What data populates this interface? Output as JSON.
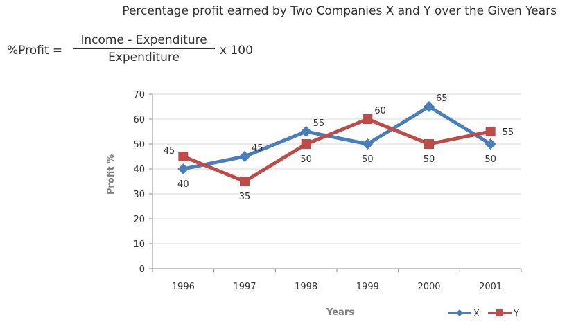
{
  "header": {
    "title": "Percentage profit earned by Two Companies X and Y over the Given Years"
  },
  "formula": {
    "lhs": "%Profit =",
    "numerator": "Income - Expenditure",
    "denominator": "Expenditure",
    "multiplier": "x 100"
  },
  "chart_data": {
    "type": "line",
    "categories": [
      "1996",
      "1997",
      "1998",
      "1999",
      "2000",
      "2001"
    ],
    "series": [
      {
        "name": "X",
        "values": [
          40,
          45,
          55,
          50,
          65,
          50
        ],
        "color": "#4a7ebb",
        "marker": "diamond"
      },
      {
        "name": "Y",
        "values": [
          45,
          35,
          50,
          60,
          50,
          55
        ],
        "color": "#be4b48",
        "marker": "square"
      }
    ],
    "data_labels": {
      "X": [
        "40",
        "45",
        "55",
        "50",
        "65",
        "50"
      ],
      "Y": [
        "45",
        "35",
        "50",
        "60",
        "50",
        "55"
      ]
    },
    "xlabel": "Years",
    "ylabel": "Profit %",
    "ylim": [
      0,
      70
    ],
    "yticks": [
      "0",
      "10",
      "20",
      "30",
      "40",
      "50",
      "60",
      "70"
    ],
    "grid": true,
    "legend_position": "bottom-right"
  }
}
